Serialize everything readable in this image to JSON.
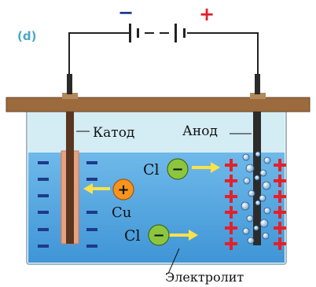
{
  "panel_label": "(d)",
  "battery": {
    "negative_sign": "−",
    "positive_sign": "+"
  },
  "labels": {
    "cathode": "Катод",
    "anode": "Анод",
    "electrolyte": "Электролит"
  },
  "ions": [
    {
      "symbol": "Cl",
      "charge": "−",
      "color": "#8cc63f"
    },
    {
      "symbol": "Cu",
      "charge": "+",
      "color": "#f7941d"
    },
    {
      "symbol": "Cl",
      "charge": "−",
      "color": "#8cc63f"
    }
  ],
  "colors": {
    "electrolyte": "#5aa9e2",
    "electrolyte_top": "#d4ecf4",
    "board": "#9b6a3d",
    "cathode": "#7a4d2f",
    "anode": "#2b2b2b",
    "positive": "#e4202a",
    "negative": "#1f3a8a",
    "arrow": "#fbe14a",
    "panel_label": "#4aa6c8"
  }
}
